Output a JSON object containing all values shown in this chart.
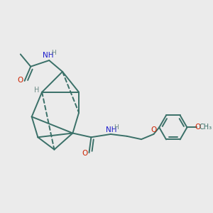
{
  "background_color": "#ebebeb",
  "bond_color": "#3a7068",
  "bond_width": 1.4,
  "atom_colors": {
    "N": "#1a1acc",
    "O": "#cc2200",
    "H": "#6a8a85"
  },
  "figsize": [
    3.0,
    3.0
  ],
  "dpi": 100,
  "xlim": [
    0.0,
    1.0
  ],
  "ylim": [
    0.15,
    0.95
  ]
}
